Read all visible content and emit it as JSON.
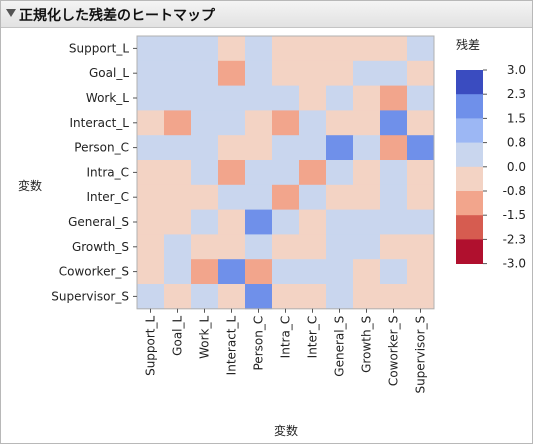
{
  "panel": {
    "title": "正規化した残差のヒートマップ"
  },
  "colors": {
    "scale": [
      "#b0102e",
      "#d65c50",
      "#f2a58c",
      "#f3d3c4",
      "#c9d6ee",
      "#9cb7f4",
      "#6f90ea",
      "#3a4cc0"
    ],
    "grid_border": "#b0b0b0"
  },
  "chart_data": {
    "type": "heatmap",
    "title": "",
    "xlabel": "変数",
    "ylabel": "変数",
    "x_categories": [
      "Support_L",
      "Goal_L",
      "Work_L",
      "Interact_L",
      "Person_C",
      "Intra_C",
      "Inter_C",
      "General_S",
      "Growth_S",
      "Coworker_S",
      "Supervisor_S"
    ],
    "y_categories": [
      "Support_L",
      "Goal_L",
      "Work_L",
      "Interact_L",
      "Person_C",
      "Intra_C",
      "Inter_C",
      "General_S",
      "Growth_S",
      "Coworker_S",
      "Supervisor_S"
    ],
    "values": [
      [
        0.0,
        0.0,
        0.0,
        -0.8,
        0.0,
        -0.8,
        -0.8,
        -0.8,
        -0.8,
        -0.8,
        0.0
      ],
      [
        0.0,
        0.0,
        0.0,
        -1.5,
        0.0,
        -0.8,
        -0.8,
        -0.8,
        0.0,
        0.0,
        -0.8
      ],
      [
        0.0,
        0.0,
        0.0,
        0.0,
        0.0,
        0.0,
        -0.8,
        0.0,
        -0.8,
        -1.5,
        0.0
      ],
      [
        -0.8,
        -1.5,
        0.0,
        0.0,
        -0.8,
        -1.5,
        0.0,
        -0.8,
        -0.8,
        1.5,
        -0.8
      ],
      [
        0.0,
        0.0,
        0.0,
        -0.8,
        -0.8,
        0.0,
        0.0,
        1.5,
        0.0,
        -1.5,
        1.5
      ],
      [
        -0.8,
        -0.8,
        0.0,
        -1.5,
        0.0,
        0.0,
        -1.5,
        0.0,
        -0.8,
        0.0,
        -0.8
      ],
      [
        -0.8,
        -0.8,
        -0.8,
        0.0,
        0.0,
        -1.5,
        0.0,
        -0.8,
        -0.8,
        0.0,
        -0.8
      ],
      [
        -0.8,
        -0.8,
        0.0,
        -0.8,
        1.5,
        0.0,
        -0.8,
        0.0,
        0.0,
        0.0,
        0.0
      ],
      [
        -0.8,
        0.0,
        -0.8,
        -0.8,
        0.0,
        -0.8,
        -0.8,
        0.0,
        0.0,
        -0.8,
        -0.8
      ],
      [
        -0.8,
        0.0,
        -1.5,
        1.5,
        -1.5,
        0.0,
        0.0,
        0.0,
        -0.8,
        0.0,
        -0.8
      ],
      [
        0.0,
        -0.8,
        0.0,
        -0.8,
        1.5,
        -0.8,
        -0.8,
        0.0,
        -0.8,
        -0.8,
        -0.8
      ]
    ],
    "legend": {
      "title": "残差",
      "position": "right",
      "tick_labels": [
        "3.0",
        "2.3",
        "1.5",
        "0.8",
        "0.0",
        "-0.8",
        "-1.5",
        "-2.3",
        "-3.0"
      ],
      "bins": [
        {
          "low": 2.3,
          "high": 3.0,
          "color": "#3a4cc0"
        },
        {
          "low": 1.5,
          "high": 2.3,
          "color": "#6f90ea"
        },
        {
          "low": 0.8,
          "high": 1.5,
          "color": "#9cb7f4"
        },
        {
          "low": 0.0,
          "high": 0.8,
          "color": "#c9d6ee"
        },
        {
          "low": -0.8,
          "high": 0.0,
          "color": "#f3d3c4"
        },
        {
          "low": -1.5,
          "high": -0.8,
          "color": "#f2a58c"
        },
        {
          "low": -2.3,
          "high": -1.5,
          "color": "#d65c50"
        },
        {
          "low": -3.0,
          "high": -2.3,
          "color": "#b0102e"
        }
      ]
    }
  }
}
